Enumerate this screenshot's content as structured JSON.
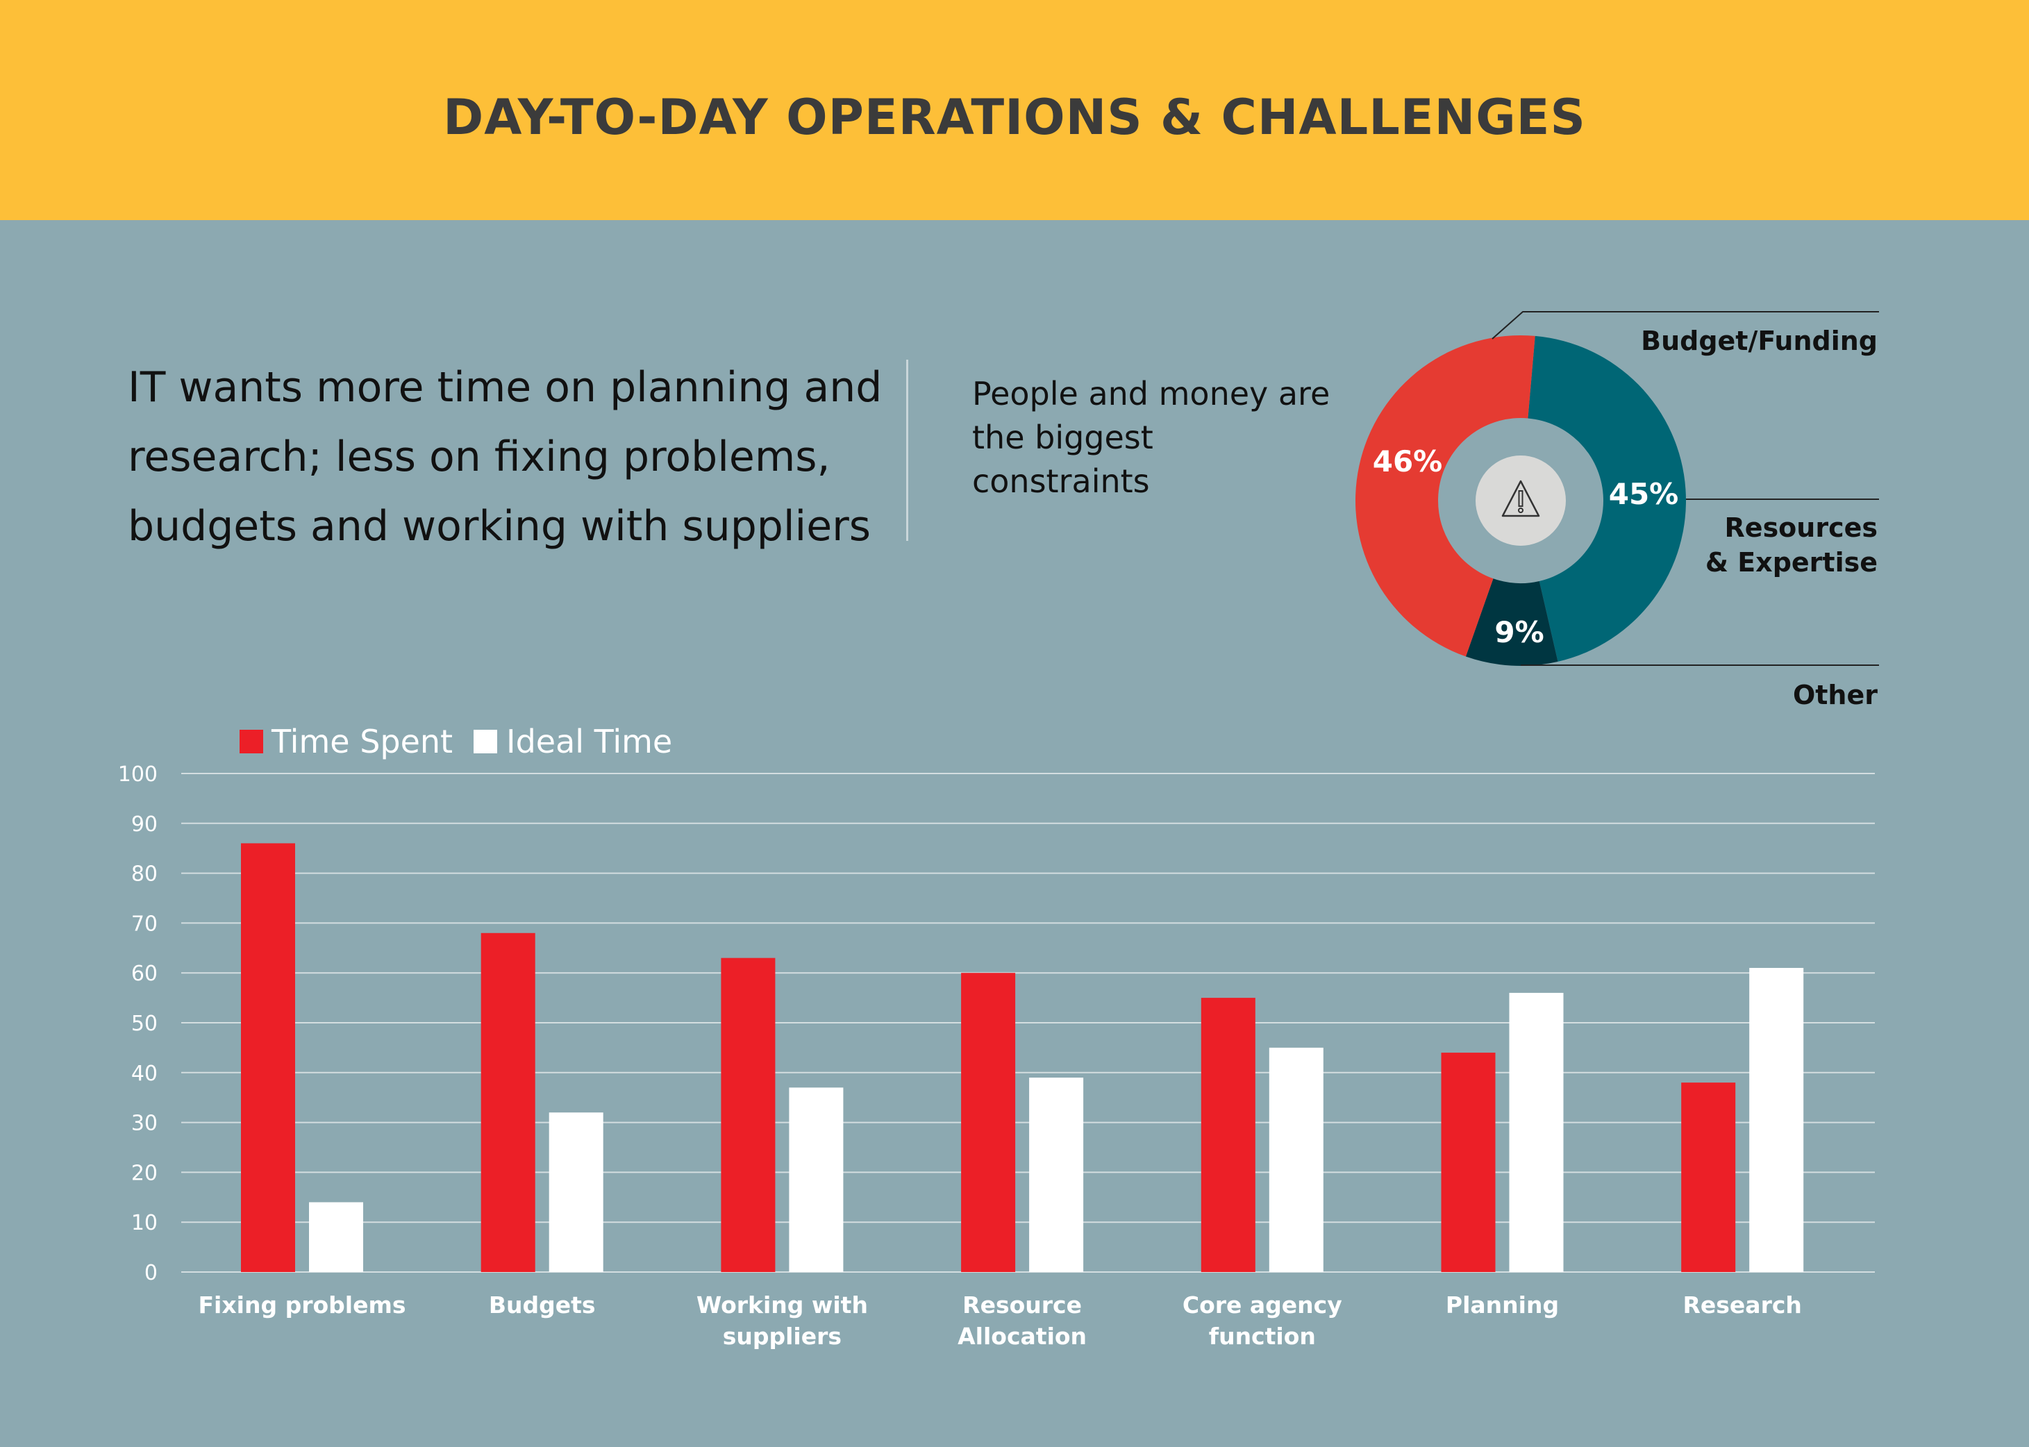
{
  "header": {
    "title": "DAY-TO-DAY OPERATIONS & CHALLENGES"
  },
  "intro_text": "IT wants more time on planning and research; less on fixing problems, budgets and working with suppliers",
  "donut_caption": "People and money are the biggest constraints",
  "colors": {
    "background": "#8ca9b1",
    "header": "#fdbf38",
    "time_spent": "#ec1f27",
    "ideal_time": "#ffffff",
    "budget_funding": "#e53b32",
    "resources_expertise": "#006675",
    "other": "#003641"
  },
  "donut_center_icon": "warning-triangle-icon",
  "chart_data": [
    {
      "type": "pie",
      "style": "donut",
      "slices": [
        {
          "label": "Resources & Expertise",
          "value": 45,
          "display": "45%",
          "color": "#006675"
        },
        {
          "label": "Other",
          "value": 9,
          "display": "9%",
          "color": "#003641"
        },
        {
          "label": "Budget/Funding",
          "value": 46,
          "display": "46%",
          "color": "#e53b32"
        }
      ],
      "legend_labels": {
        "budget": "Budget/Funding",
        "resources_1": "Resources",
        "resources_2": "& Expertise",
        "other": "Other"
      }
    },
    {
      "type": "bar",
      "categories": [
        [
          "Fixing problems"
        ],
        [
          "Budgets"
        ],
        [
          "Working with",
          "suppliers"
        ],
        [
          "Resource",
          "Allocation"
        ],
        [
          "Core agency",
          "function"
        ],
        [
          "Planning"
        ],
        [
          "Research"
        ]
      ],
      "series": [
        {
          "name": "Time Spent",
          "color": "#ec1f27",
          "values": [
            86,
            68,
            63,
            60,
            55,
            44,
            38
          ]
        },
        {
          "name": "Ideal Time",
          "color": "#ffffff",
          "values": [
            14,
            32,
            37,
            39,
            45,
            56,
            61
          ]
        }
      ],
      "ylim": [
        0,
        100
      ],
      "yticks": [
        0,
        10,
        20,
        30,
        40,
        50,
        60,
        70,
        80,
        90,
        100
      ],
      "grid": true,
      "legend_position": "top-left"
    }
  ]
}
